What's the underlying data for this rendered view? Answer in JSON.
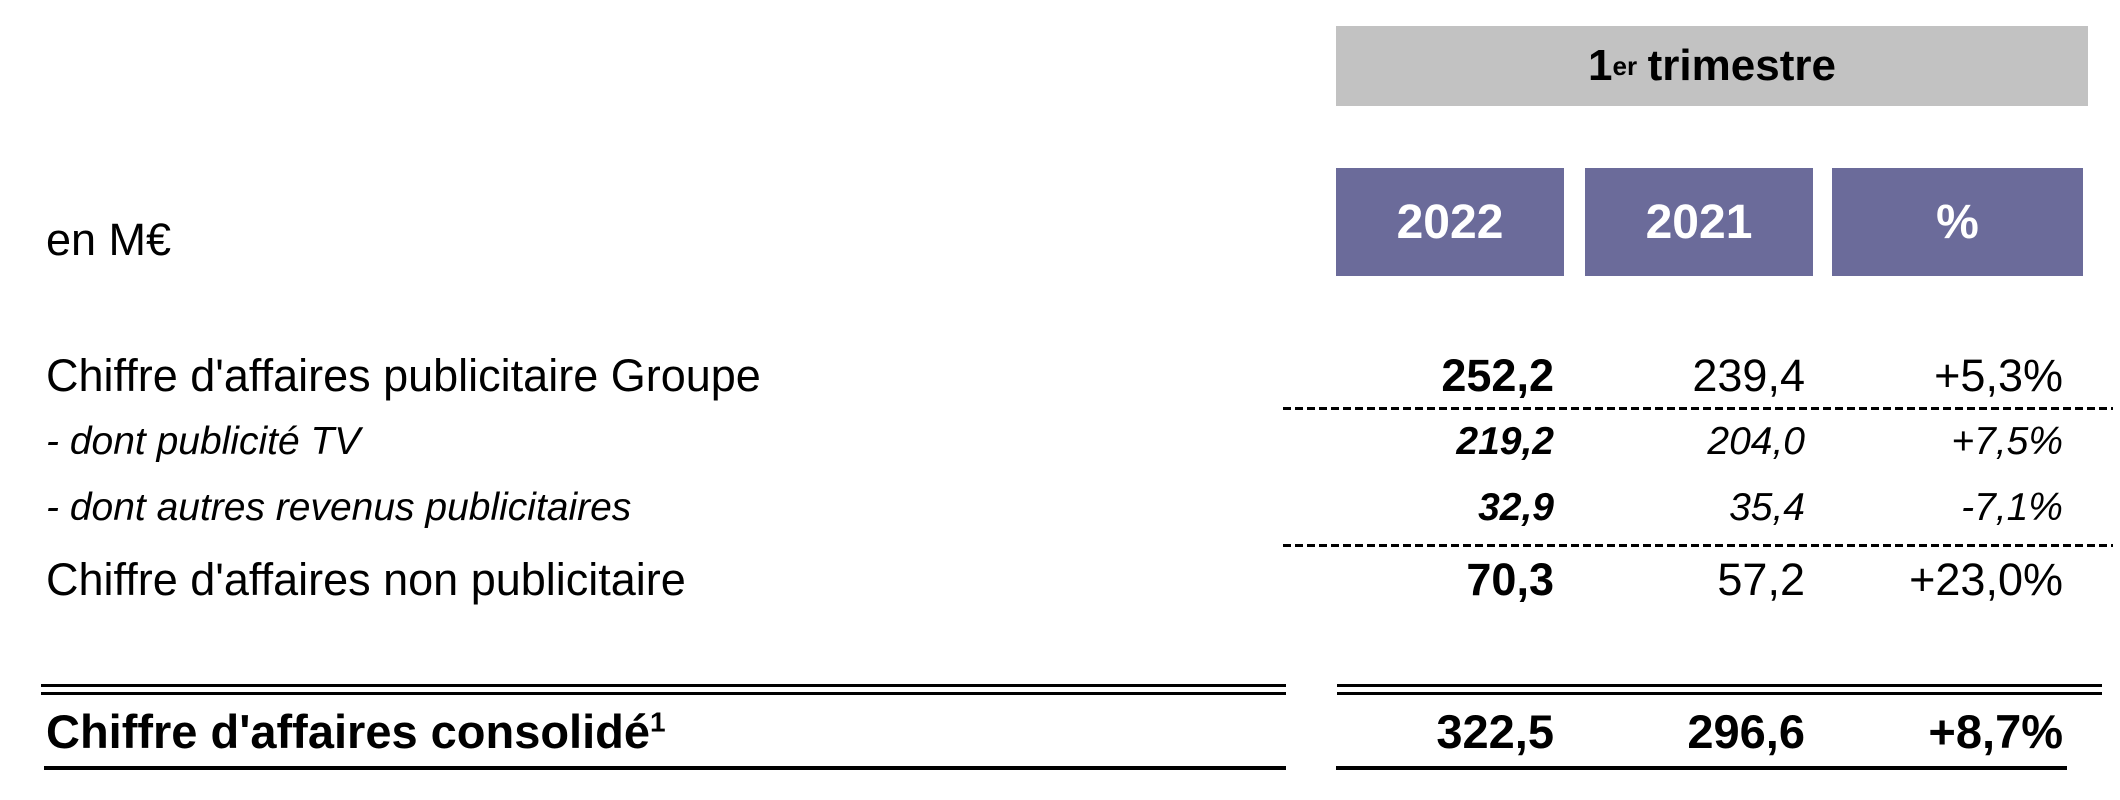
{
  "document": {
    "type": "financial-results-table",
    "unit_label": "en M€"
  },
  "period_header": {
    "number": "1",
    "superscript": "er",
    "rest": "trimestre"
  },
  "columns": [
    {
      "label": "2022"
    },
    {
      "label": "2021"
    },
    {
      "label": "%"
    }
  ],
  "rows": [
    {
      "label": "Chiffre d'affaires publicitaire Groupe",
      "style": "main",
      "values": [
        "252,2",
        "239,4",
        "+5,3%"
      ]
    },
    {
      "label": "- dont publicité TV",
      "style": "sub",
      "values": [
        "219,2",
        "204,0",
        "+7,5%"
      ]
    },
    {
      "label": "- dont autres revenus publicitaires",
      "style": "sub",
      "values": [
        "32,9",
        "35,4",
        "-7,1%"
      ]
    },
    {
      "label": "Chiffre d'affaires non publicitaire",
      "style": "main",
      "values": [
        "70,3",
        "57,2",
        "+23,0%"
      ]
    }
  ],
  "total_row": {
    "label": "Chiffre d'affaires consolidé",
    "footnote_marker": "1",
    "values": [
      "322,5",
      "296,6",
      "+8,7%"
    ]
  },
  "colors": {
    "period_band_gray": "#c2c2c2",
    "year_box_purple": "#6b6b9a",
    "year_text": "#ffffff",
    "body_text": "#000000"
  }
}
